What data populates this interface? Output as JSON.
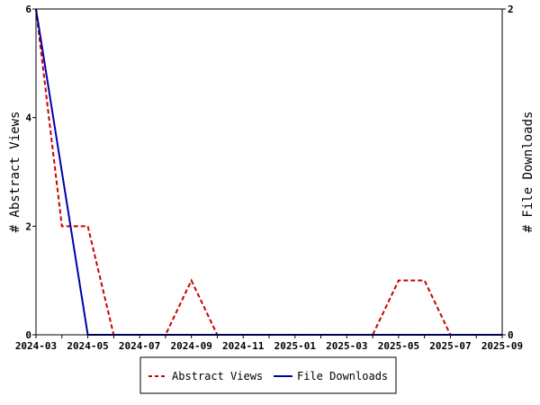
{
  "chart_data": {
    "type": "line",
    "title": "",
    "x": [
      "2024-03",
      "2024-04",
      "2024-05",
      "2024-06",
      "2024-07",
      "2024-08",
      "2024-09",
      "2024-10",
      "2024-11",
      "2024-12",
      "2025-01",
      "2025-02",
      "2025-03",
      "2025-04",
      "2025-05",
      "2025-06",
      "2025-07",
      "2025-08",
      "2025-09"
    ],
    "x_ticks": [
      "2024-03",
      "2024-05",
      "2024-07",
      "2024-09",
      "2024-11",
      "2025-01",
      "2025-03",
      "2025-05",
      "2025-07",
      "2025-09"
    ],
    "ylabel_left": "# Abstract Views",
    "ylabel_right": "# File Downloads",
    "ylim_left": [
      0,
      6
    ],
    "ylim_right": [
      0,
      2
    ],
    "yticks_left": [
      0,
      2,
      4,
      6
    ],
    "yticks_right": [
      0,
      2
    ],
    "grid": false,
    "legend_position": "bottom",
    "series": [
      {
        "name": "Abstract Views",
        "axis": "left",
        "style": "dashed",
        "color": "#cc0000",
        "values": [
          6,
          2,
          2,
          0,
          0,
          0,
          1,
          0,
          0,
          0,
          0,
          0,
          0,
          0,
          1,
          1,
          0,
          0,
          0
        ]
      },
      {
        "name": "File Downloads",
        "axis": "right",
        "style": "solid",
        "color": "#0000aa",
        "values": [
          2,
          null,
          0,
          0,
          0,
          0,
          0,
          0,
          0,
          0,
          0,
          0,
          0,
          0,
          0,
          0,
          0,
          0,
          0
        ]
      }
    ]
  }
}
